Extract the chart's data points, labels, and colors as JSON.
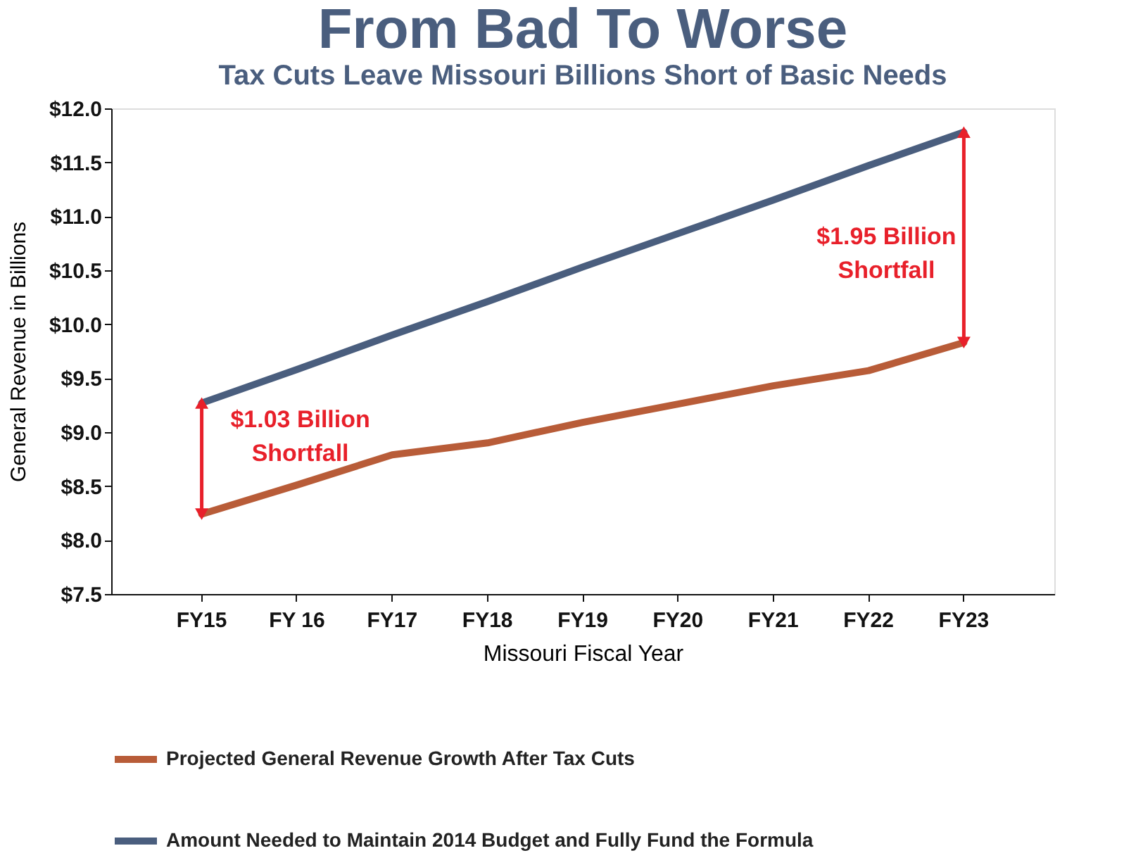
{
  "chart_data": {
    "type": "line",
    "title": "From Bad To Worse",
    "subtitle": "Tax Cuts Leave Missouri Billions Short of Basic Needs",
    "xlabel": "Missouri Fiscal Year",
    "ylabel": "General Revenue in Billions",
    "categories": [
      "FY15",
      "FY 16",
      "FY17",
      "FY18",
      "FY19",
      "FY20",
      "FY21",
      "FY22",
      "FY23"
    ],
    "series": [
      {
        "name": "Projected General Revenue Growth After Tax Cuts",
        "color": "#b85c38",
        "values": [
          8.24,
          8.51,
          8.79,
          8.9,
          9.09,
          9.26,
          9.43,
          9.57,
          9.83
        ]
      },
      {
        "name": "Amount Needed to Maintain 2014 Budget and Fully Fund the Formula",
        "color": "#4a5e7e",
        "values": [
          9.27,
          9.58,
          9.9,
          10.21,
          10.53,
          10.84,
          11.15,
          11.47,
          11.78
        ]
      }
    ],
    "ylim": [
      7.5,
      12.0
    ],
    "yticks": [
      {
        "value": 7.5,
        "label": "$7.5"
      },
      {
        "value": 8.0,
        "label": "$8.0"
      },
      {
        "value": 8.5,
        "label": "$8.5"
      },
      {
        "value": 9.0,
        "label": "$9.0"
      },
      {
        "value": 9.5,
        "label": "$9.5"
      },
      {
        "value": 10.0,
        "label": "$10.0"
      },
      {
        "value": 10.5,
        "label": "$10.5"
      },
      {
        "value": 11.0,
        "label": "$11.0"
      },
      {
        "value": 11.5,
        "label": "$11.5"
      },
      {
        "value": 12.0,
        "label": "$12.0"
      }
    ],
    "annotations": [
      {
        "text": "$1.03 Billion\nShortfall",
        "x": "FY15",
        "y": 9.27
      },
      "$1.95 Billion\nShortfall"
    ],
    "grid": false,
    "legend": "bottom",
    "marker": "none",
    "line_style": "solid"
  }
}
